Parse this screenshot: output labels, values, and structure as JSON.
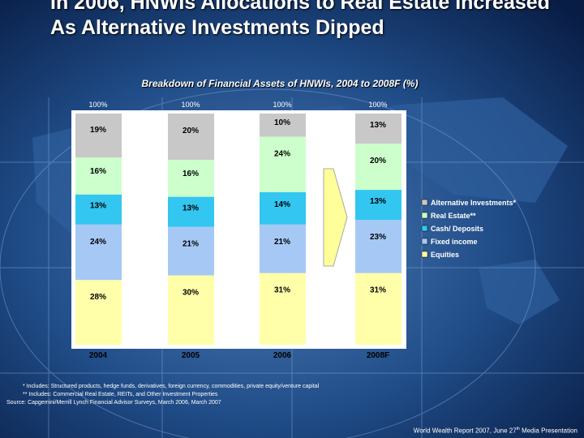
{
  "title": "In 2006, HNWIs Allocations to Real Estate Increased As Alternative Investments Dipped",
  "chart_data": {
    "type": "bar",
    "stacked": true,
    "title": "Breakdown of Financial Assets of HNWIs, 2004 to 2008F (%)",
    "categories": [
      "2004",
      "2005",
      "2006",
      "2008F"
    ],
    "totals": [
      "100%",
      "100%",
      "100%",
      "100%"
    ],
    "series": [
      {
        "name": "Equities",
        "color": "#ffffaa",
        "values": [
          28,
          30,
          31,
          31
        ]
      },
      {
        "name": "Fixed income",
        "color": "#a6c8f5",
        "values": [
          24,
          21,
          21,
          23
        ]
      },
      {
        "name": "Cash/ Deposits",
        "color": "#33c6f0",
        "values": [
          13,
          13,
          14,
          13
        ]
      },
      {
        "name": "Real Estate**",
        "color": "#ccffcc",
        "values": [
          16,
          16,
          24,
          20
        ]
      },
      {
        "name": "Alternative Investments*",
        "color": "#c8c8c8",
        "values": [
          19,
          20,
          10,
          13
        ]
      }
    ],
    "value_labels": [
      [
        "28%",
        "30%",
        "31%",
        "31%"
      ],
      [
        "24%",
        "21%",
        "21%",
        "23%"
      ],
      [
        "13%",
        "13%",
        "14%",
        "13%"
      ],
      [
        "16%",
        "16%",
        "24%",
        "20%"
      ],
      [
        "19%",
        "20%",
        "10%",
        "13%"
      ]
    ],
    "legend": [
      "Alternative Investments*",
      "Real Estate**",
      "Cash/ Deposits",
      "Fixed income",
      "Equities"
    ],
    "legend_position": "right",
    "ylim": [
      0,
      100
    ],
    "grid": false
  },
  "notes": {
    "note1": "* Includes: Structured products, hedge funds, derivatives, foreign currency, commodities, private equity/venture capital",
    "note2": "** Includes: Commercial Real Estate, REITs, and Other Investment Properties",
    "source": "Source:  Capgemini/Merrill Lynch Financial Advisor Surveys, March 2006, March 2007"
  },
  "footer": {
    "text": "World Wealth Report 2007,  June 27",
    "superscript": "th",
    "suffix": "  Media Presentation"
  },
  "colors": {
    "background": "#0c2a5c",
    "text": "#ffffff",
    "arrow": "#ffff99"
  }
}
